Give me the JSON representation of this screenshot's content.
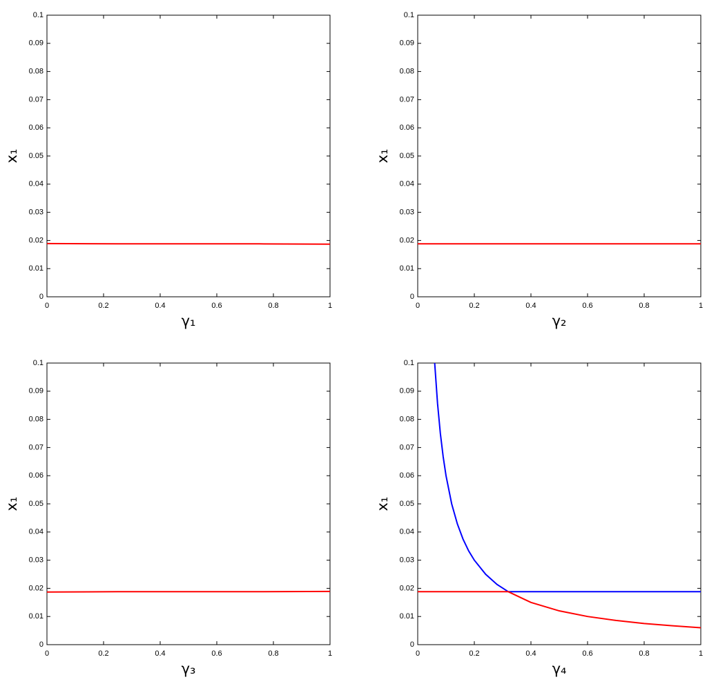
{
  "chart_data": [
    {
      "type": "line",
      "xlabel": "γ₁",
      "ylabel": "x₁",
      "xlim": [
        0,
        1
      ],
      "ylim": [
        0,
        0.1
      ],
      "xticks": [
        0,
        0.2,
        0.4,
        0.6,
        0.8,
        1
      ],
      "yticks": [
        0,
        0.01,
        0.02,
        0.03,
        0.04,
        0.05,
        0.06,
        0.07,
        0.08,
        0.09,
        0.1
      ],
      "series": [
        {
          "color": "#ff0000",
          "x": [
            0,
            0.25,
            0.5,
            0.75,
            1
          ],
          "values": [
            0.0189,
            0.0188,
            0.0188,
            0.0188,
            0.0187
          ]
        }
      ]
    },
    {
      "type": "line",
      "xlabel": "γ₂",
      "ylabel": "x₁",
      "xlim": [
        0,
        1
      ],
      "ylim": [
        0,
        0.1
      ],
      "xticks": [
        0,
        0.2,
        0.4,
        0.6,
        0.8,
        1
      ],
      "yticks": [
        0,
        0.01,
        0.02,
        0.03,
        0.04,
        0.05,
        0.06,
        0.07,
        0.08,
        0.09,
        0.1
      ],
      "series": [
        {
          "color": "#ff0000",
          "x": [
            0,
            0.25,
            0.5,
            0.75,
            1
          ],
          "values": [
            0.0188,
            0.0188,
            0.0188,
            0.0188,
            0.0188
          ]
        }
      ]
    },
    {
      "type": "line",
      "xlabel": "γ₃",
      "ylabel": "x₁",
      "xlim": [
        0,
        1
      ],
      "ylim": [
        0,
        0.1
      ],
      "xticks": [
        0,
        0.2,
        0.4,
        0.6,
        0.8,
        1
      ],
      "yticks": [
        0,
        0.01,
        0.02,
        0.03,
        0.04,
        0.05,
        0.06,
        0.07,
        0.08,
        0.09,
        0.1
      ],
      "series": [
        {
          "color": "#ff0000",
          "x": [
            0,
            0.25,
            0.5,
            0.75,
            1
          ],
          "values": [
            0.0187,
            0.0188,
            0.0188,
            0.0188,
            0.0189
          ]
        }
      ]
    },
    {
      "type": "line",
      "xlabel": "γ₄",
      "ylabel": "x₁",
      "xlim": [
        0,
        1
      ],
      "ylim": [
        0,
        0.1
      ],
      "xticks": [
        0,
        0.2,
        0.4,
        0.6,
        0.8,
        1
      ],
      "yticks": [
        0,
        0.01,
        0.02,
        0.03,
        0.04,
        0.05,
        0.06,
        0.07,
        0.08,
        0.09,
        0.1
      ],
      "series": [
        {
          "color": "#0000ff",
          "x": [
            0.06,
            0.07,
            0.08,
            0.09,
            0.1,
            0.12,
            0.14,
            0.16,
            0.18,
            0.2,
            0.24,
            0.28,
            0.32,
            0.5,
            0.75,
            1
          ],
          "values": [
            0.1,
            0.0857,
            0.075,
            0.0667,
            0.06,
            0.05,
            0.0429,
            0.0375,
            0.0333,
            0.03,
            0.025,
            0.0214,
            0.0188,
            0.0188,
            0.0188,
            0.0188
          ]
        },
        {
          "color": "#ff0000",
          "x": [
            0,
            0.16,
            0.32,
            0.4,
            0.5,
            0.6,
            0.7,
            0.8,
            0.9,
            1
          ],
          "values": [
            0.0188,
            0.0188,
            0.0188,
            0.015,
            0.012,
            0.01,
            0.0086,
            0.0075,
            0.0067,
            0.006
          ]
        }
      ]
    }
  ]
}
